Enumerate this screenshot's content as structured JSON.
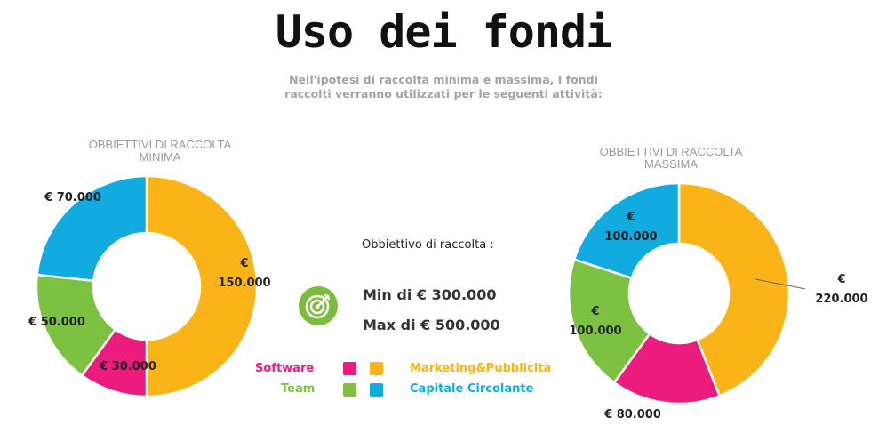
{
  "header": {
    "title": "Uso dei fondi",
    "subtitle_line1": "Nell'ipotesi di raccolta minima e massima, I fondi",
    "subtitle_line2": "raccolti verranno utilizzati per le seguenti attività:"
  },
  "goals": {
    "heading": "Obbiettivo di raccolta :",
    "min": "Min di € 300.000",
    "max": "Max di € 500.000",
    "icon": "target-icon",
    "icon_color": "#7dbb3e"
  },
  "legend": [
    {
      "name": "Software",
      "color": "#ec1c7f"
    },
    {
      "name": "Marketing&Pubblicità",
      "color": "#fbb417"
    },
    {
      "name": "Team",
      "color": "#7dc143"
    },
    {
      "name": "Capitale Circolante",
      "color": "#11abe0"
    }
  ],
  "chart_data": [
    {
      "type": "pie",
      "style": "donut",
      "title_line1": "OBBIETTIVI DI RACCOLTA",
      "title_line2": "MINIMA",
      "slices": [
        {
          "name": "Marketing&Pubblicità",
          "value": 150000,
          "label_line1": "€",
          "label_line2": "150.000",
          "color": "#fbb417"
        },
        {
          "name": "Software",
          "value": 30000,
          "label_line1": "€ 30.000",
          "label_line2": "",
          "color": "#ec1c7f"
        },
        {
          "name": "Team",
          "value": 50000,
          "label_line1": "€ 50.000",
          "label_line2": "",
          "color": "#7dc143"
        },
        {
          "name": "Capitale Circolante",
          "value": 70000,
          "label_line1": "€ 70.000",
          "label_line2": "",
          "color": "#11abe0"
        }
      ]
    },
    {
      "type": "pie",
      "style": "donut",
      "title_line1": "OBBIETTIVI DI RACCOLTA",
      "title_line2": "MASSIMA",
      "slices": [
        {
          "name": "Marketing&Pubblicità",
          "value": 220000,
          "label_line1": "€",
          "label_line2": "220.000",
          "color": "#fbb417"
        },
        {
          "name": "Software",
          "value": 80000,
          "label_line1": "€ 80.000",
          "label_line2": "",
          "color": "#ec1c7f"
        },
        {
          "name": "Team",
          "value": 100000,
          "label_line1": "€",
          "label_line2": "100.000",
          "color": "#7dc143"
        },
        {
          "name": "Capitale Circolante",
          "value": 100000,
          "label_line1": "€",
          "label_line2": "100.000",
          "color": "#11abe0"
        }
      ]
    }
  ]
}
